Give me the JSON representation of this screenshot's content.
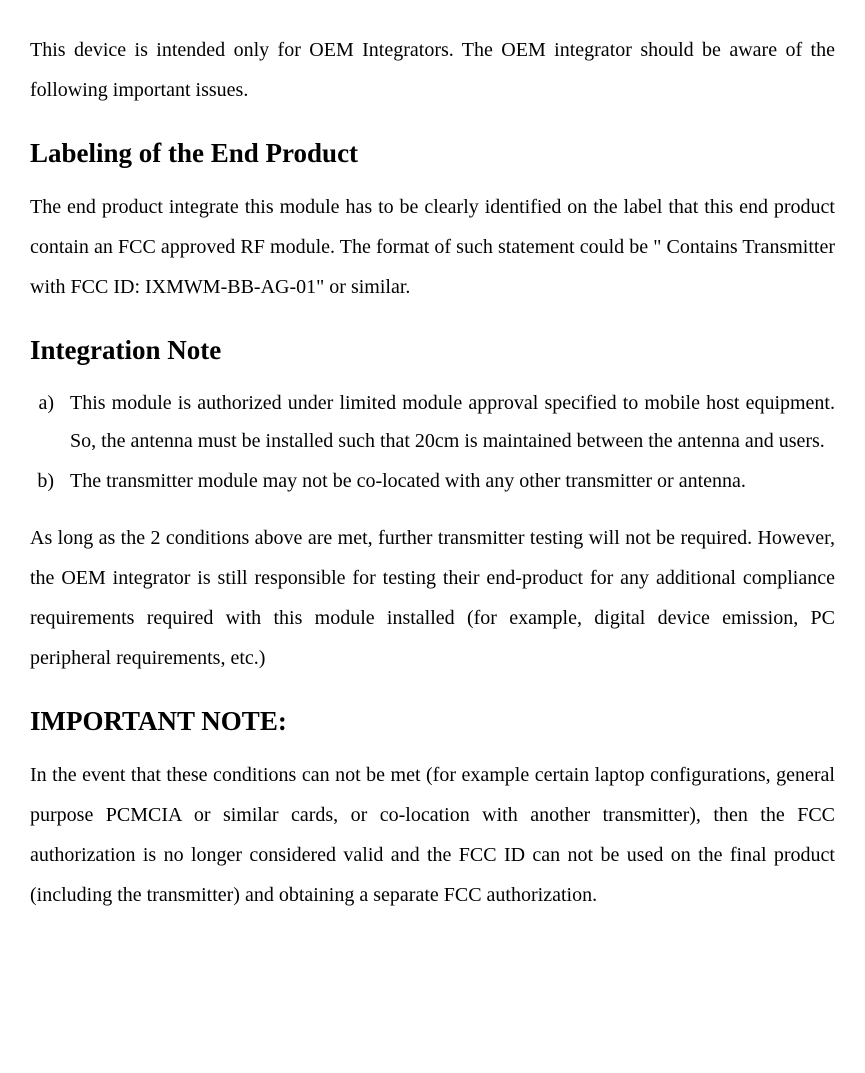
{
  "intro": "This device is intended only for OEM Integrators. The OEM integrator should be aware of the following important issues.",
  "section1": {
    "heading": "Labeling of the End Product",
    "body": "The end product integrate this module has to be clearly identified on the label that this end product contain an FCC approved RF module. The format of such statement could be \" Contains Transmitter with FCC ID: IXMWM-BB-AG-01\" or similar."
  },
  "section2": {
    "heading": "Integration Note",
    "items": [
      "This module is authorized under limited module approval specified to mobile host equipment. So, the antenna must be installed such that 20cm is maintained between the antenna and users.",
      "The transmitter module may not be co-located with any other transmitter or antenna."
    ],
    "after": "As long as the 2 conditions above are met, further transmitter testing will not be required. However, the OEM integrator is still responsible for testing their end-product for any additional compliance requirements required with this module installed (for example, digital device emission, PC peripheral requirements, etc.)"
  },
  "section3": {
    "heading": "IMPORTANT NOTE:",
    "body": "In the event that these conditions can not be met (for example certain laptop configurations, general purpose PCMCIA or similar cards, or co-location with another transmitter), then the FCC authorization is no longer considered valid and the FCC ID can not be used on the final product (including the transmitter) and obtaining a separate FCC authorization."
  }
}
